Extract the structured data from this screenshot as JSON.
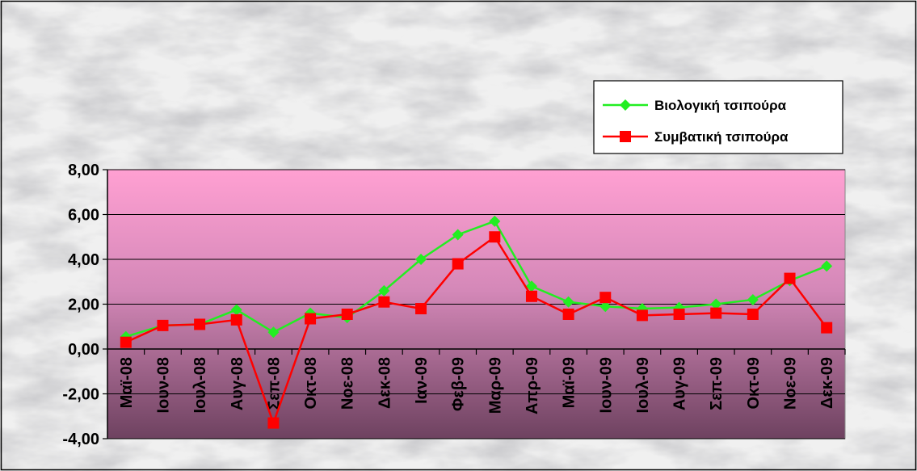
{
  "chart_data": {
    "type": "line",
    "title": "",
    "xlabel": "",
    "ylabel": "",
    "categories": [
      "Μαϊ-08",
      "Ιουν-08",
      "Ιουλ-08",
      "Αυγ-08",
      "Σεπ-08",
      "Οκτ-08",
      "Νοε-08",
      "Δεκ-08",
      "Ιαν-09",
      "Φεβ-09",
      "Μαρ-09",
      "Απρ-09",
      "Μαϊ-09",
      "Ιουν-09",
      "Ιουλ-09",
      "Αυγ-09",
      "Σεπ-09",
      "Οκτ-09",
      "Νοε-09",
      "Δεκ-09"
    ],
    "ylim": [
      -4,
      8
    ],
    "yticks": [
      "8,00",
      "6,00",
      "4,00",
      "2,00",
      "0,00",
      "-2,00",
      "-4,00"
    ],
    "ytick_values": [
      8,
      6,
      4,
      2,
      0,
      -2,
      -4
    ],
    "grid": true,
    "legend_position": "top-right",
    "series": [
      {
        "name": "Βιολογική τσιπούρα",
        "color": "#22ee22",
        "marker": "diamond",
        "values": [
          0.55,
          1.05,
          1.1,
          1.75,
          0.75,
          1.6,
          1.4,
          2.6,
          4.0,
          5.1,
          5.7,
          2.8,
          2.1,
          1.9,
          1.8,
          1.85,
          2.0,
          2.2,
          3.05,
          3.7
        ]
      },
      {
        "name": "Συμβατική τσιπούρα",
        "color": "#ff0000",
        "marker": "square",
        "values": [
          0.3,
          1.05,
          1.1,
          1.3,
          -3.3,
          1.35,
          1.55,
          2.1,
          1.8,
          3.8,
          5.0,
          2.35,
          1.55,
          2.3,
          1.5,
          1.55,
          1.6,
          1.55,
          3.15,
          0.95
        ]
      }
    ]
  },
  "colors": {
    "plot_top": "#ff9ed0",
    "plot_mid": "#c27aa8",
    "plot_bottom": "#7a4a66",
    "background_marble": "#d9d9d9"
  }
}
